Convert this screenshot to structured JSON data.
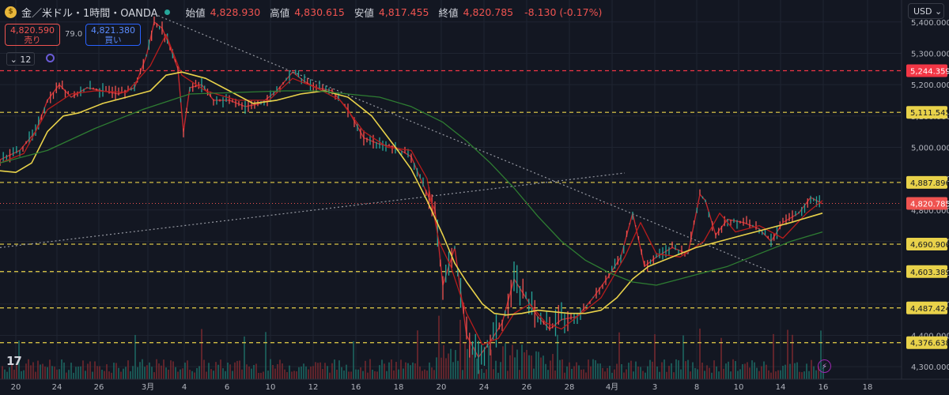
{
  "header": {
    "symbol": "金／米ドル・1時間・OANDA",
    "open_label": "始値",
    "open": "4,828.930",
    "high_label": "高値",
    "high": "4,830.615",
    "low_label": "安値",
    "low": "4,817.455",
    "close_label": "終値",
    "close": "4,820.785",
    "change": "-8.130 (-0.17%)"
  },
  "trade": {
    "sell_price": "4,820.590",
    "sell_label": "売り",
    "spread": "79.0",
    "buy_price": "4,821.380",
    "buy_label": "買い"
  },
  "controls": {
    "collapse_label": "12",
    "currency": "USD"
  },
  "logo_text": "17",
  "colors": {
    "bg": "#131722",
    "grid": "#1f2431",
    "text": "#d1d4dc",
    "up": "#26a69a",
    "down": "#ef5350",
    "candle": "#c1272d",
    "ma_fast": "#b71c1c",
    "ma_mid": "#e9d24a",
    "ma_slow": "#2e7d32",
    "level": "#e9d24a",
    "level_red": "#f23645",
    "trend": "#9598a1"
  },
  "chart_data": {
    "type": "line",
    "title": "金／米ドル・1時間・OANDA",
    "ylim": [
      4260,
      5470
    ],
    "xlim": [
      0,
      1045
    ],
    "y_ticks": [
      4300,
      4400,
      4500,
      4600,
      4700,
      4800,
      4900,
      5000,
      5100,
      5200,
      5300,
      5400
    ],
    "y_tick_labels": [
      "4,300.000",
      "4,400.000",
      "4,500.000",
      "4,600.000",
      "4,700.000",
      "4,800.000",
      "4,900.000",
      "5,000.000",
      "5,100.000",
      "5,200.000",
      "5,300.000",
      "5,400.000"
    ],
    "x_ticks": [
      20,
      72,
      125,
      187,
      233,
      287,
      342,
      396,
      450,
      504,
      558,
      612,
      666,
      720,
      774,
      828,
      881,
      934,
      987,
      1041,
      1097
    ],
    "x_tick_labels": [
      "20",
      "24",
      "26",
      "3月",
      "4",
      "6",
      "10",
      "12",
      "16",
      "18",
      "20",
      "24",
      "26",
      "28",
      "4月",
      "3",
      "8",
      "10",
      "14",
      "16",
      "18"
    ],
    "current_price": {
      "value": 4820.785,
      "label": "4,820.785"
    },
    "levels": [
      {
        "value": 5244.359,
        "label": "5,244.359",
        "color": "red"
      },
      {
        "value": 5111.545,
        "label": "5,111.545",
        "color": "yellow"
      },
      {
        "value": 4887.896,
        "label": "4,887.896",
        "color": "yellow"
      },
      {
        "value": 4690.906,
        "label": "4,690.906",
        "color": "yellow"
      },
      {
        "value": 4603.389,
        "label": "4,603.389",
        "color": "yellow"
      },
      {
        "value": 4487.424,
        "label": "4,487.424",
        "color": "yellow"
      },
      {
        "value": 4376.638,
        "label": "4,376.638",
        "color": "yellow"
      }
    ],
    "trendlines": [
      {
        "name": "descending-trendline",
        "points": [
          [
            200,
            5420
          ],
          [
            975,
            4603
          ]
        ]
      },
      {
        "name": "ascending-trendline",
        "points": [
          [
            0,
            4680
          ],
          [
            790,
            4918
          ]
        ]
      }
    ],
    "series": [
      {
        "name": "price",
        "x": [
          0,
          25,
          45,
          60,
          75,
          90,
          110,
          130,
          150,
          170,
          185,
          195,
          205,
          215,
          225,
          232,
          240,
          255,
          270,
          290,
          310,
          330,
          350,
          370,
          385,
          400,
          420,
          440,
          460,
          480,
          500,
          520,
          535,
          550,
          560,
          575,
          590,
          605,
          620,
          635,
          650,
          665,
          680,
          695,
          710,
          730,
          750,
          770,
          785,
          800,
          815,
          830,
          850,
          870,
          885,
          892,
          905,
          920,
          940,
          960,
          975,
          990,
          1010,
          1025,
          1040
        ],
        "y": [
          4960,
          4990,
          5050,
          5150,
          5200,
          5160,
          5190,
          5180,
          5170,
          5190,
          5290,
          5400,
          5380,
          5320,
          5250,
          5050,
          5190,
          5200,
          5150,
          5150,
          5130,
          5140,
          5180,
          5240,
          5210,
          5190,
          5180,
          5120,
          5030,
          5010,
          5000,
          4970,
          4880,
          4800,
          4560,
          4680,
          4400,
          4330,
          4380,
          4440,
          4580,
          4520,
          4460,
          4420,
          4450,
          4460,
          4520,
          4590,
          4650,
          4790,
          4620,
          4650,
          4680,
          4660,
          4850,
          4830,
          4720,
          4770,
          4760,
          4740,
          4700,
          4760,
          4790,
          4840,
          4820
        ]
      },
      {
        "name": "ma-fast",
        "x": [
          0,
          30,
          60,
          90,
          120,
          160,
          190,
          210,
          230,
          260,
          300,
          340,
          370,
          400,
          430,
          460,
          490,
          520,
          540,
          555,
          570,
          590,
          610,
          630,
          650,
          670,
          690,
          710,
          730,
          760,
          790,
          810,
          830,
          860,
          890,
          910,
          930,
          960,
          990,
          1020,
          1040
        ],
        "y": [
          4950,
          4980,
          5120,
          5170,
          5180,
          5175,
          5260,
          5360,
          5230,
          5180,
          5150,
          5150,
          5220,
          5190,
          5150,
          5050,
          5000,
          4990,
          4900,
          4700,
          4620,
          4470,
          4370,
          4390,
          4470,
          4500,
          4440,
          4420,
          4460,
          4520,
          4650,
          4760,
          4660,
          4650,
          4700,
          4790,
          4730,
          4750,
          4710,
          4790,
          4830
        ]
      },
      {
        "name": "ma-mid",
        "x": [
          0,
          20,
          40,
          60,
          80,
          100,
          130,
          160,
          190,
          210,
          230,
          260,
          290,
          320,
          350,
          380,
          410,
          440,
          470,
          500,
          520,
          540,
          560,
          575,
          590,
          610,
          625,
          640,
          660,
          680,
          700,
          720,
          740,
          760,
          780,
          800,
          820,
          850,
          880,
          910,
          940,
          970,
          1000,
          1020,
          1040
        ],
        "y": [
          4925,
          4920,
          4950,
          5050,
          5100,
          5110,
          5140,
          5160,
          5180,
          5230,
          5240,
          5220,
          5180,
          5140,
          5150,
          5170,
          5180,
          5160,
          5100,
          5000,
          4930,
          4830,
          4720,
          4630,
          4570,
          4500,
          4470,
          4465,
          4470,
          4480,
          4475,
          4470,
          4470,
          4480,
          4520,
          4580,
          4620,
          4650,
          4680,
          4700,
          4720,
          4740,
          4760,
          4775,
          4790
        ]
      },
      {
        "name": "ma-slow",
        "x": [
          0,
          60,
          120,
          180,
          240,
          300,
          360,
          400,
          440,
          480,
          520,
          560,
          590,
          620,
          650,
          680,
          710,
          740,
          770,
          800,
          830,
          860,
          890,
          920,
          960,
          1000,
          1040
        ],
        "y": [
          4950,
          4990,
          5060,
          5120,
          5170,
          5175,
          5180,
          5180,
          5170,
          5160,
          5130,
          5080,
          5020,
          4950,
          4870,
          4780,
          4700,
          4640,
          4600,
          4570,
          4560,
          4580,
          4600,
          4620,
          4660,
          4700,
          4730
        ]
      }
    ]
  }
}
